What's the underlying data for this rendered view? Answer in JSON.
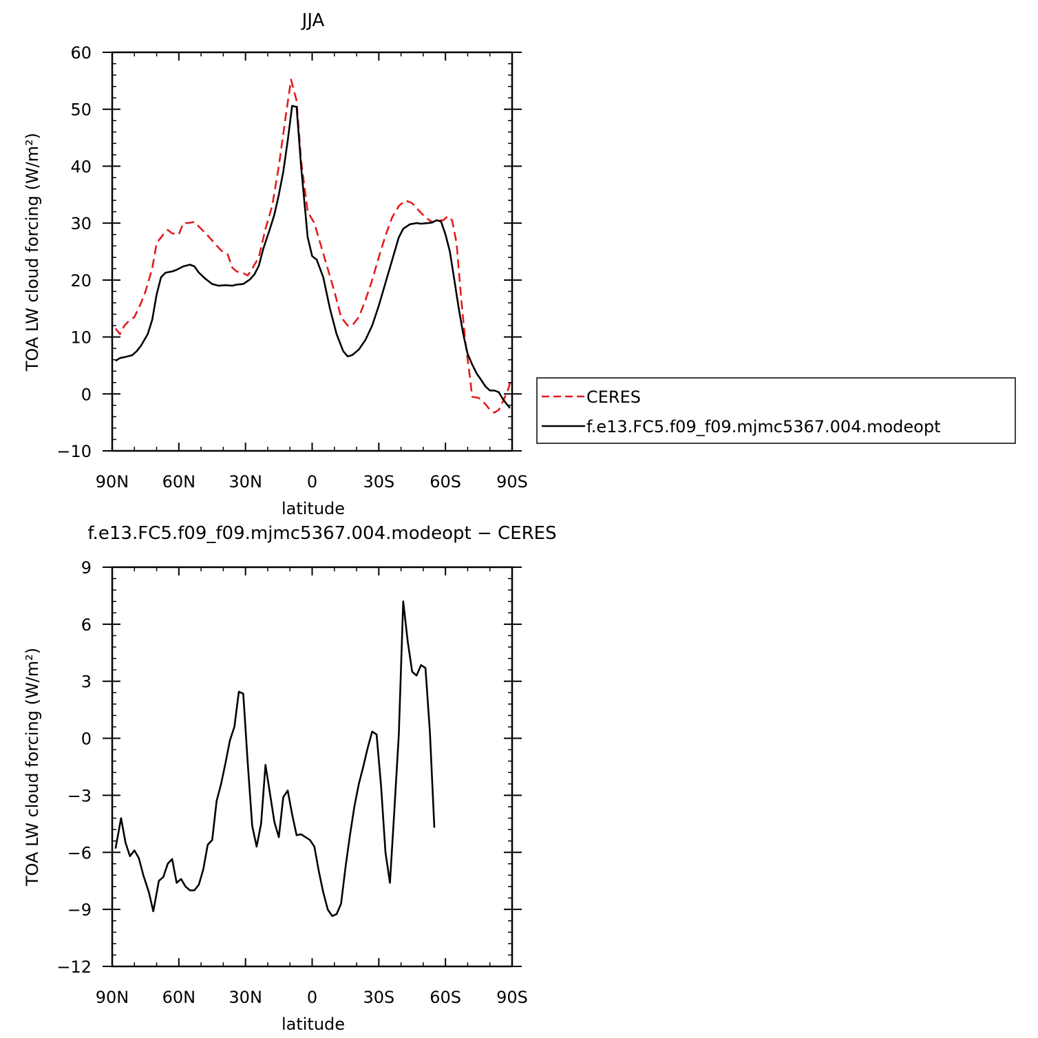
{
  "chart_data": [
    {
      "type": "line",
      "title": "JJA",
      "xlabel": "latitude",
      "ylabel": "TOA LW cloud forcing (W/m²)",
      "xlim": [
        90,
        -90
      ],
      "ylim": [
        -10,
        60
      ],
      "x_ticks": [
        {
          "value": 90,
          "label": "90N"
        },
        {
          "value": 60,
          "label": "60N"
        },
        {
          "value": 30,
          "label": "30N"
        },
        {
          "value": 0,
          "label": "0"
        },
        {
          "value": -30,
          "label": "30S"
        },
        {
          "value": -60,
          "label": "60S"
        },
        {
          "value": -90,
          "label": "90S"
        }
      ],
      "y_ticks": [
        {
          "value": 60,
          "label": "60"
        },
        {
          "value": 50,
          "label": "50"
        },
        {
          "value": 40,
          "label": "40"
        },
        {
          "value": 30,
          "label": "30"
        },
        {
          "value": 20,
          "label": "20"
        },
        {
          "value": 10,
          "label": "10"
        },
        {
          "value": 0,
          "label": "0"
        },
        {
          "value": -10,
          "label": "−10"
        }
      ],
      "legend_position": "right",
      "series": [
        {
          "name": "CERES",
          "color": "#e41a1c",
          "dash": true,
          "points": [
            [
              88.5,
              11.5
            ],
            [
              86.5,
              10.5
            ],
            [
              84.5,
              12
            ],
            [
              82,
              13
            ],
            [
              80,
              13.5
            ],
            [
              77,
              16
            ],
            [
              75,
              18
            ],
            [
              72,
              22
            ],
            [
              70,
              26.5
            ],
            [
              67,
              28
            ],
            [
              65,
              28.8
            ],
            [
              63,
              28.2
            ],
            [
              60,
              28
            ],
            [
              58,
              30
            ],
            [
              56,
              30
            ],
            [
              53,
              30.2
            ],
            [
              50,
              29
            ],
            [
              47,
              27.8
            ],
            [
              44,
              26.5
            ],
            [
              41,
              25.2
            ],
            [
              38,
              24.5
            ],
            [
              36,
              22.2
            ],
            [
              34,
              21.5
            ],
            [
              31,
              21.2
            ],
            [
              29,
              20.8
            ],
            [
              27,
              22
            ],
            [
              24,
              24
            ],
            [
              21,
              29
            ],
            [
              18,
              33
            ],
            [
              15,
              40
            ],
            [
              12,
              48.5
            ],
            [
              9.5,
              55.2
            ],
            [
              7,
              51.5
            ],
            [
              5,
              41
            ],
            [
              2,
              32
            ],
            [
              -1,
              30
            ],
            [
              -4,
              26
            ],
            [
              -7,
              22
            ],
            [
              -10,
              18
            ],
            [
              -13,
              13.5
            ],
            [
              -16,
              12
            ],
            [
              -18,
              12
            ],
            [
              -21,
              13.5
            ],
            [
              -24,
              16.5
            ],
            [
              -27,
              20
            ],
            [
              -30,
              24
            ],
            [
              -33,
              27.8
            ],
            [
              -36,
              31
            ],
            [
              -39,
              33
            ],
            [
              -42,
              34
            ],
            [
              -45,
              33.5
            ],
            [
              -48,
              32.2
            ],
            [
              -51,
              31
            ],
            [
              -54,
              30.2
            ],
            [
              -57,
              30.5
            ],
            [
              -59,
              30.5
            ],
            [
              -61,
              31.2
            ],
            [
              -63,
              30.5
            ],
            [
              -65,
              26.5
            ],
            [
              -67,
              17
            ],
            [
              -69,
              9
            ],
            [
              -71,
              3
            ],
            [
              -72,
              -0.5
            ],
            [
              -75,
              -0.7
            ],
            [
              -78,
              -1.8
            ],
            [
              -80,
              -2.8
            ],
            [
              -82,
              -3.3
            ],
            [
              -84,
              -2.8
            ],
            [
              -86,
              -1.2
            ],
            [
              -88,
              0.5
            ],
            [
              -89.5,
              2.5
            ]
          ]
        },
        {
          "name": "f.e13.FC5.f09_f09.mjmc5367.004.modeopt",
          "color": "#000000",
          "dash": false,
          "points": [
            [
              88.5,
              5.8
            ],
            [
              86.5,
              6.3
            ],
            [
              84,
              6.5
            ],
            [
              81,
              6.8
            ],
            [
              79,
              7.5
            ],
            [
              77,
              8.5
            ],
            [
              74,
              10.5
            ],
            [
              72,
              13
            ],
            [
              70,
              17.5
            ],
            [
              68,
              20.5
            ],
            [
              66,
              21.3
            ],
            [
              63,
              21.5
            ],
            [
              61,
              21.8
            ],
            [
              58,
              22.4
            ],
            [
              55,
              22.7
            ],
            [
              53,
              22.4
            ],
            [
              51,
              21.3
            ],
            [
              48,
              20.2
            ],
            [
              45,
              19.3
            ],
            [
              42,
              19
            ],
            [
              39,
              19.1
            ],
            [
              36,
              19
            ],
            [
              34,
              19.2
            ],
            [
              31,
              19.3
            ],
            [
              28,
              20.1
            ],
            [
              26,
              21
            ],
            [
              24,
              22.5
            ],
            [
              22,
              25.5
            ],
            [
              19,
              29
            ],
            [
              17,
              31.5
            ],
            [
              15,
              35
            ],
            [
              13,
              39
            ],
            [
              11,
              44.5
            ],
            [
              9,
              50.6
            ],
            [
              7,
              50.4
            ],
            [
              5,
              40
            ],
            [
              2,
              27.5
            ],
            [
              0,
              24.2
            ],
            [
              -2,
              23.6
            ],
            [
              -5,
              20.5
            ],
            [
              -8,
              15
            ],
            [
              -11,
              10.5
            ],
            [
              -14,
              7.5
            ],
            [
              -16,
              6.6
            ],
            [
              -18,
              6.8
            ],
            [
              -21,
              7.8
            ],
            [
              -24,
              9.5
            ],
            [
              -27,
              12
            ],
            [
              -30,
              15.5
            ],
            [
              -33,
              19.5
            ],
            [
              -36,
              23.5
            ],
            [
              -39,
              27.5
            ],
            [
              -41,
              29
            ],
            [
              -44,
              29.8
            ],
            [
              -47,
              30
            ],
            [
              -49,
              29.9
            ],
            [
              -52,
              30
            ],
            [
              -54,
              30.1
            ],
            [
              -56,
              30.5
            ],
            [
              -58,
              30.3
            ],
            [
              -60,
              28
            ],
            [
              -62,
              25
            ],
            [
              -64,
              20
            ],
            [
              -66,
              15
            ],
            [
              -68,
              10.5
            ],
            [
              -70,
              7
            ],
            [
              -72,
              5.2
            ],
            [
              -74,
              3.6
            ],
            [
              -76,
              2.5
            ],
            [
              -78,
              1.3
            ],
            [
              -80,
              0.6
            ],
            [
              -82,
              0.6
            ],
            [
              -84,
              0.3
            ],
            [
              -86,
              -1
            ],
            [
              -89,
              -2.5
            ]
          ]
        }
      ]
    },
    {
      "type": "line",
      "title": "f.e13.FC5.f09_f09.mjmc5367.004.modeopt − CERES",
      "xlabel": "latitude",
      "ylabel": "TOA LW cloud forcing (W/m²)",
      "xlim": [
        90,
        -90
      ],
      "ylim": [
        -12,
        9
      ],
      "x_ticks": [
        {
          "value": 90,
          "label": "90N"
        },
        {
          "value": 60,
          "label": "60N"
        },
        {
          "value": 30,
          "label": "30N"
        },
        {
          "value": 0,
          "label": "0"
        },
        {
          "value": -30,
          "label": "30S"
        },
        {
          "value": -60,
          "label": "60S"
        },
        {
          "value": -90,
          "label": "90S"
        }
      ],
      "y_ticks": [
        {
          "value": 9,
          "label": "9"
        },
        {
          "value": 6,
          "label": "6"
        },
        {
          "value": 3,
          "label": "3"
        },
        {
          "value": 0,
          "label": "0"
        },
        {
          "value": -3,
          "label": "−3"
        },
        {
          "value": -6,
          "label": "−6"
        },
        {
          "value": -9,
          "label": "−9"
        },
        {
          "value": -12,
          "label": "−12"
        }
      ],
      "series": [
        {
          "color": "#000000",
          "dash": false,
          "points": [
            [
              88.5,
              -5.8
            ],
            [
              86,
              -4.2
            ],
            [
              84,
              -5.5
            ],
            [
              82,
              -6.2
            ],
            [
              80,
              -5.9
            ],
            [
              78,
              -6.3
            ],
            [
              76,
              -7.2
            ],
            [
              73.5,
              -8.1
            ],
            [
              71.5,
              -9.1
            ],
            [
              69,
              -7.5
            ],
            [
              67,
              -7.3
            ],
            [
              65,
              -6.6
            ],
            [
              63,
              -6.35
            ],
            [
              61,
              -7.6
            ],
            [
              59,
              -7.4
            ],
            [
              57,
              -7.8
            ],
            [
              55,
              -8
            ],
            [
              53,
              -8
            ],
            [
              51,
              -7.7
            ],
            [
              49,
              -6.9
            ],
            [
              47,
              -5.6
            ],
            [
              45,
              -5.35
            ],
            [
              43,
              -3.3
            ],
            [
              41,
              -2.4
            ],
            [
              39,
              -1.3
            ],
            [
              37,
              -0.1
            ],
            [
              35,
              0.6
            ],
            [
              33,
              2.45
            ],
            [
              31,
              2.35
            ],
            [
              29,
              -1.3
            ],
            [
              27,
              -4.6
            ],
            [
              25,
              -5.7
            ],
            [
              23,
              -4.5
            ],
            [
              21,
              -1.4
            ],
            [
              19,
              -2.9
            ],
            [
              17,
              -4.4
            ],
            [
              15,
              -5.2
            ],
            [
              13,
              -3.1
            ],
            [
              11,
              -2.75
            ],
            [
              9,
              -4
            ],
            [
              7,
              -5.1
            ],
            [
              5,
              -5.05
            ],
            [
              3,
              -5.2
            ],
            [
              1,
              -5.35
            ],
            [
              -1,
              -5.7
            ],
            [
              -3,
              -7
            ],
            [
              -5,
              -8.1
            ],
            [
              -7,
              -9
            ],
            [
              -9,
              -9.35
            ],
            [
              -11,
              -9.25
            ],
            [
              -13,
              -8.7
            ],
            [
              -15,
              -6.8
            ],
            [
              -17,
              -5.1
            ],
            [
              -19,
              -3.6
            ],
            [
              -21,
              -2.4
            ],
            [
              -23,
              -1.5
            ],
            [
              -25,
              -0.5
            ],
            [
              -27,
              0.35
            ],
            [
              -29,
              0.2
            ],
            [
              -31,
              -2.5
            ],
            [
              -33,
              -6
            ],
            [
              -35,
              -7.6
            ],
            [
              -37,
              -3.8
            ],
            [
              -39,
              0.2
            ],
            [
              -41,
              7.2
            ],
            [
              -43,
              5.1
            ],
            [
              -45,
              3.5
            ],
            [
              -47,
              3.3
            ],
            [
              -49,
              3.85
            ],
            [
              -51,
              3.7
            ],
            [
              -53,
              0.3
            ],
            [
              -55,
              -4.7
            ]
          ]
        }
      ]
    }
  ]
}
